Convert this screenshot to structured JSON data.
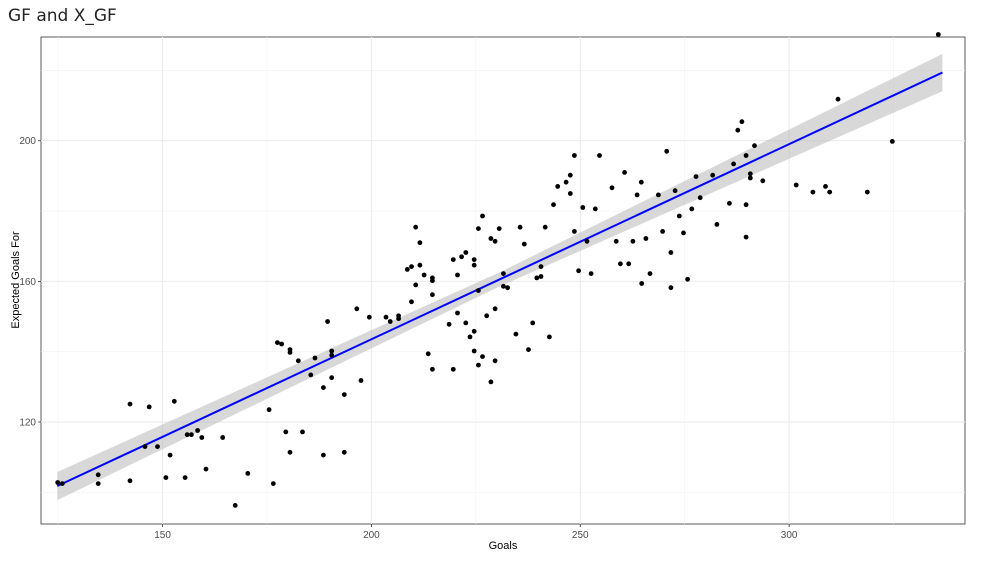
{
  "title": "GF and X_GF",
  "chart_data": {
    "type": "scatter",
    "title": "GF and X_GF",
    "xlabel": "Goals",
    "ylabel": "Expected Goals For",
    "xlim": [
      120.9,
      342.1
    ],
    "ylim": [
      91.0,
      229.5
    ],
    "x_ticks": [
      "150",
      "200",
      "250",
      "300"
    ],
    "y_ticks": [
      "120",
      "160",
      "200"
    ],
    "grid": true,
    "colors": {
      "points": "#000000",
      "fit_line": "#0000ff",
      "confidence_band": "#bebebe"
    },
    "fit": {
      "method": "lm",
      "x": [
        124.8,
        336.7
      ],
      "y": [
        101.8,
        219.4
      ],
      "band_half_width": [
        4.0,
        2.0,
        5.3
      ]
    },
    "points": [
      [
        124.9,
        102.8
      ],
      [
        126.0,
        102.5
      ],
      [
        134.6,
        105.0
      ],
      [
        134.6,
        102.5
      ],
      [
        142.2,
        103.3
      ],
      [
        142.2,
        125.1
      ],
      [
        145.8,
        113.0
      ],
      [
        146.8,
        124.3
      ],
      [
        148.8,
        113.0
      ],
      [
        150.8,
        104.2
      ],
      [
        151.8,
        110.6
      ],
      [
        152.8,
        125.9
      ],
      [
        155.4,
        104.2
      ],
      [
        155.9,
        116.4
      ],
      [
        156.9,
        116.4
      ],
      [
        158.4,
        117.6
      ],
      [
        159.4,
        115.6
      ],
      [
        160.4,
        106.6
      ],
      [
        164.4,
        115.6
      ],
      [
        167.4,
        96.3
      ],
      [
        170.4,
        105.4
      ],
      [
        175.5,
        123.5
      ],
      [
        176.5,
        102.5
      ],
      [
        177.5,
        142.6
      ],
      [
        178.5,
        142.2
      ],
      [
        179.5,
        117.2
      ],
      [
        180.5,
        140.6
      ],
      [
        180.5,
        139.8
      ],
      [
        180.5,
        111.4
      ],
      [
        182.5,
        137.4
      ],
      [
        183.5,
        117.2
      ],
      [
        185.5,
        133.4
      ],
      [
        186.5,
        138.2
      ],
      [
        188.5,
        129.8
      ],
      [
        188.5,
        110.6
      ],
      [
        189.5,
        148.6
      ],
      [
        190.5,
        140.2
      ],
      [
        190.5,
        139.0
      ],
      [
        190.5,
        132.6
      ],
      [
        193.5,
        127.8
      ],
      [
        193.5,
        111.4
      ],
      [
        196.5,
        152.2
      ],
      [
        197.5,
        131.8
      ],
      [
        199.5,
        149.8
      ],
      [
        203.5,
        149.8
      ],
      [
        204.5,
        148.6
      ],
      [
        206.5,
        150.2
      ],
      [
        206.5,
        149.4
      ],
      [
        208.6,
        163.4
      ],
      [
        209.6,
        154.2
      ],
      [
        209.6,
        164.2
      ],
      [
        210.6,
        175.4
      ],
      [
        210.6,
        159.0
      ],
      [
        211.6,
        164.6
      ],
      [
        211.6,
        171.0
      ],
      [
        212.6,
        161.8
      ],
      [
        213.6,
        139.4
      ],
      [
        214.6,
        135.0
      ],
      [
        214.6,
        156.2
      ],
      [
        214.6,
        161.0
      ],
      [
        214.6,
        160.2
      ],
      [
        218.6,
        147.8
      ],
      [
        219.6,
        135.0
      ],
      [
        219.6,
        166.2
      ],
      [
        220.6,
        161.8
      ],
      [
        220.6,
        151.0
      ],
      [
        221.6,
        167.0
      ],
      [
        222.6,
        148.2
      ],
      [
        222.6,
        168.2
      ],
      [
        223.6,
        144.2
      ],
      [
        224.6,
        166.2
      ],
      [
        224.6,
        164.6
      ],
      [
        224.6,
        140.2
      ],
      [
        224.6,
        145.8
      ],
      [
        225.6,
        175.0
      ],
      [
        225.6,
        157.4
      ],
      [
        225.6,
        136.2
      ],
      [
        226.6,
        178.6
      ],
      [
        226.6,
        138.6
      ],
      [
        227.6,
        150.2
      ],
      [
        228.6,
        172.2
      ],
      [
        228.6,
        131.4
      ],
      [
        229.6,
        171.4
      ],
      [
        229.6,
        137.4
      ],
      [
        229.6,
        152.2
      ],
      [
        230.6,
        175.0
      ],
      [
        231.6,
        158.6
      ],
      [
        232.6,
        158.2
      ],
      [
        231.6,
        162.2
      ],
      [
        234.6,
        145.0
      ],
      [
        235.6,
        175.4
      ],
      [
        236.6,
        170.6
      ],
      [
        237.6,
        140.6
      ],
      [
        238.6,
        148.2
      ],
      [
        239.6,
        161.0
      ],
      [
        240.6,
        161.4
      ],
      [
        240.6,
        164.2
      ],
      [
        241.6,
        175.4
      ],
      [
        242.6,
        144.2
      ],
      [
        243.6,
        181.8
      ],
      [
        244.6,
        187.0
      ],
      [
        246.6,
        188.2
      ],
      [
        247.6,
        185.0
      ],
      [
        247.6,
        190.2
      ],
      [
        248.6,
        195.8
      ],
      [
        248.6,
        174.2
      ],
      [
        249.6,
        163.0
      ],
      [
        250.6,
        181.0
      ],
      [
        251.6,
        171.4
      ],
      [
        252.6,
        162.2
      ],
      [
        253.6,
        180.6
      ],
      [
        254.6,
        195.8
      ],
      [
        257.6,
        186.6
      ],
      [
        258.6,
        171.4
      ],
      [
        259.6,
        165.0
      ],
      [
        260.6,
        191.0
      ],
      [
        261.6,
        165.0
      ],
      [
        262.6,
        171.4
      ],
      [
        263.6,
        184.6
      ],
      [
        264.6,
        188.2
      ],
      [
        264.7,
        159.4
      ],
      [
        265.7,
        172.2
      ],
      [
        266.7,
        162.2
      ],
      [
        268.7,
        184.6
      ],
      [
        269.7,
        174.2
      ],
      [
        270.7,
        197.0
      ],
      [
        271.7,
        158.2
      ],
      [
        271.7,
        168.2
      ],
      [
        272.7,
        185.8
      ],
      [
        273.7,
        178.6
      ],
      [
        274.7,
        173.8
      ],
      [
        275.7,
        160.6
      ],
      [
        276.7,
        180.6
      ],
      [
        277.7,
        189.8
      ],
      [
        278.7,
        183.8
      ],
      [
        281.7,
        190.2
      ],
      [
        282.7,
        176.2
      ],
      [
        285.7,
        182.2
      ],
      [
        286.7,
        193.4
      ],
      [
        287.7,
        203.0
      ],
      [
        288.7,
        205.4
      ],
      [
        289.7,
        172.6
      ],
      [
        289.7,
        195.8
      ],
      [
        289.7,
        181.8
      ],
      [
        290.7,
        190.6
      ],
      [
        290.7,
        189.4
      ],
      [
        291.7,
        198.6
      ],
      [
        293.7,
        188.6
      ],
      [
        301.7,
        187.4
      ],
      [
        305.7,
        185.4
      ],
      [
        308.7,
        187.0
      ],
      [
        309.7,
        185.4
      ],
      [
        311.7,
        211.8
      ],
      [
        318.7,
        185.4
      ],
      [
        324.7,
        199.8
      ],
      [
        335.7,
        230.2
      ]
    ]
  }
}
